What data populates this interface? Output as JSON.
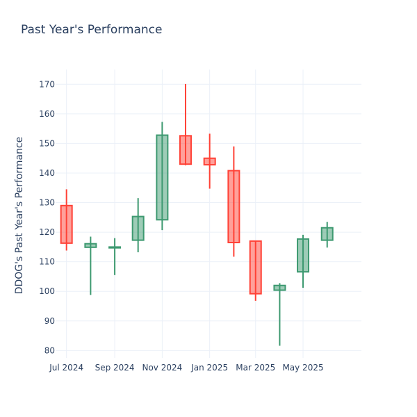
{
  "chart_data": {
    "type": "candlestick",
    "title": "Past Year's Performance",
    "xlabel": "",
    "ylabel": "DDOG's Past Year's Performance",
    "ylim": [
      77.5,
      175
    ],
    "xlim": [
      "2024-06-17",
      "2025-07-15"
    ],
    "y_ticks": [
      80,
      90,
      100,
      110,
      120,
      130,
      140,
      150,
      160,
      170
    ],
    "x_ticks": [
      {
        "date": "2024-07-01",
        "label": "Jul 2024"
      },
      {
        "date": "2024-09-01",
        "label": "Sep 2024"
      },
      {
        "date": "2024-11-01",
        "label": "Nov 2024"
      },
      {
        "date": "2025-01-01",
        "label": "Jan 2025"
      },
      {
        "date": "2025-03-01",
        "label": "Mar 2025"
      },
      {
        "date": "2025-05-01",
        "label": "May 2025"
      }
    ],
    "grid": true,
    "increasing_color": "#3d9970",
    "decreasing_color": "#ff4136",
    "candles": [
      {
        "date": "2024-07-01",
        "open": 129.0,
        "high": 134.5,
        "low": 113.8,
        "close": 116.3
      },
      {
        "date": "2024-08-01",
        "open": 114.9,
        "high": 118.5,
        "low": 98.8,
        "close": 116.1
      },
      {
        "date": "2024-09-01",
        "open": 114.7,
        "high": 118.0,
        "low": 105.5,
        "close": 115.0
      },
      {
        "date": "2024-10-01",
        "open": 117.3,
        "high": 131.5,
        "low": 113.2,
        "close": 125.3
      },
      {
        "date": "2024-11-01",
        "open": 124.2,
        "high": 157.3,
        "low": 120.7,
        "close": 152.8
      },
      {
        "date": "2024-12-01",
        "open": 152.6,
        "high": 170.1,
        "low": 142.6,
        "close": 143.0
      },
      {
        "date": "2025-01-01",
        "open": 145.0,
        "high": 153.3,
        "low": 134.7,
        "close": 142.8
      },
      {
        "date": "2025-02-01",
        "open": 140.8,
        "high": 149.0,
        "low": 111.7,
        "close": 116.5
      },
      {
        "date": "2025-03-01",
        "open": 117.0,
        "high": 117.0,
        "low": 96.8,
        "close": 99.2
      },
      {
        "date": "2025-04-01",
        "open": 100.4,
        "high": 102.8,
        "low": 81.6,
        "close": 102.0
      },
      {
        "date": "2025-05-01",
        "open": 106.6,
        "high": 119.1,
        "low": 101.2,
        "close": 117.7
      },
      {
        "date": "2025-06-01",
        "open": 117.3,
        "high": 123.5,
        "low": 114.8,
        "close": 121.5
      }
    ]
  }
}
